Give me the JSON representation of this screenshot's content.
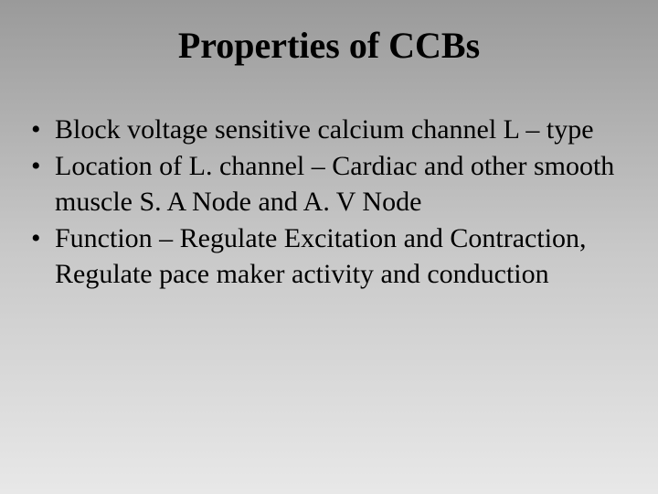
{
  "slide": {
    "title": "Properties of CCBs",
    "bullets": [
      "Block voltage sensitive calcium channel L – type",
      "Location of L. channel – Cardiac and other smooth muscle S. A Node and A. V Node",
      "Function – Regulate Excitation and Contraction, Regulate pace maker activity and conduction"
    ],
    "colors": {
      "text": "#000000",
      "bg_top": "#9a9a9a",
      "bg_mid": "#c8c8c8",
      "bg_bottom": "#e8e8e8"
    },
    "typography": {
      "title_fontsize": 40,
      "title_weight": "bold",
      "body_fontsize": 30,
      "font_family": "Times New Roman"
    }
  }
}
